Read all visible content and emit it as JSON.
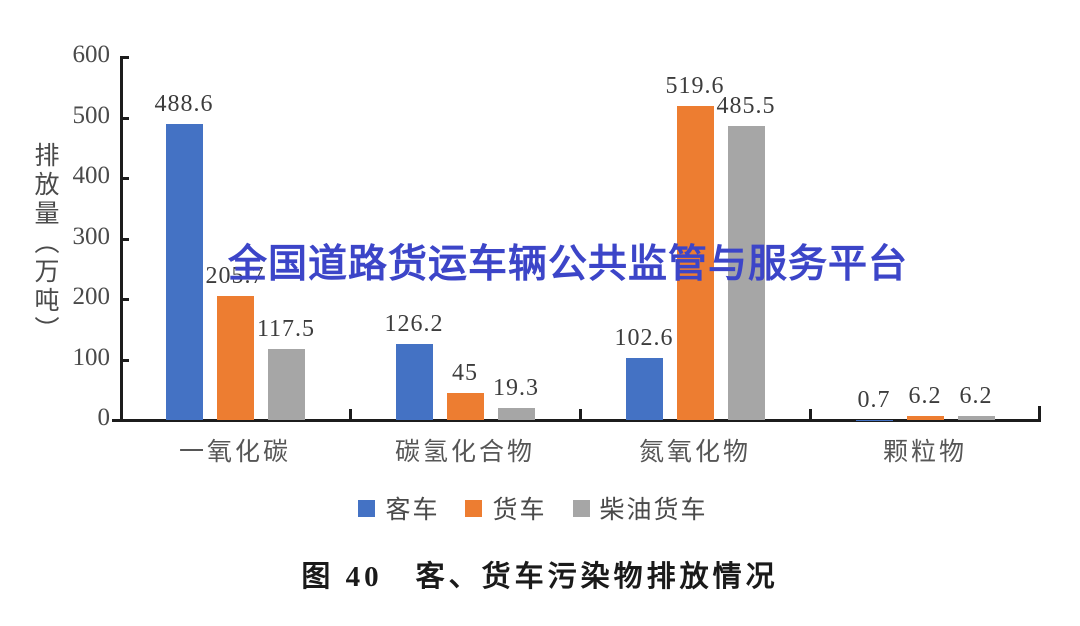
{
  "watermark": {
    "text": "全国道路货运车辆公共监管与服务平台",
    "color": "#3c45c8"
  },
  "caption": "图 40　客、货车污染物排放情况",
  "colors": {
    "axis": "#1c1c1c",
    "blue": "#4472C4",
    "orange": "#ED7D31",
    "gray": "#A6A6A6"
  },
  "chart_data": {
    "type": "bar",
    "title": "图 40 客、货车污染物排放情况",
    "ylabel": "排放量（万吨）",
    "xlabel": "",
    "ylim": [
      0,
      600
    ],
    "yticks": [
      0,
      100,
      200,
      300,
      400,
      500,
      600
    ],
    "grid": false,
    "legend_position": "bottom",
    "categories": [
      "一氧化碳",
      "碳氢化合物",
      "氮氧化物",
      "颗粒物"
    ],
    "series": [
      {
        "name": "客车",
        "color": "#4472C4",
        "values": [
          488.6,
          126.2,
          102.6,
          0.7
        ]
      },
      {
        "name": "货车",
        "color": "#ED7D31",
        "values": [
          205.7,
          45,
          519.6,
          6.2
        ]
      },
      {
        "name": "柴油货车",
        "color": "#A6A6A6",
        "values": [
          117.5,
          19.3,
          485.5,
          6.2
        ]
      }
    ]
  }
}
